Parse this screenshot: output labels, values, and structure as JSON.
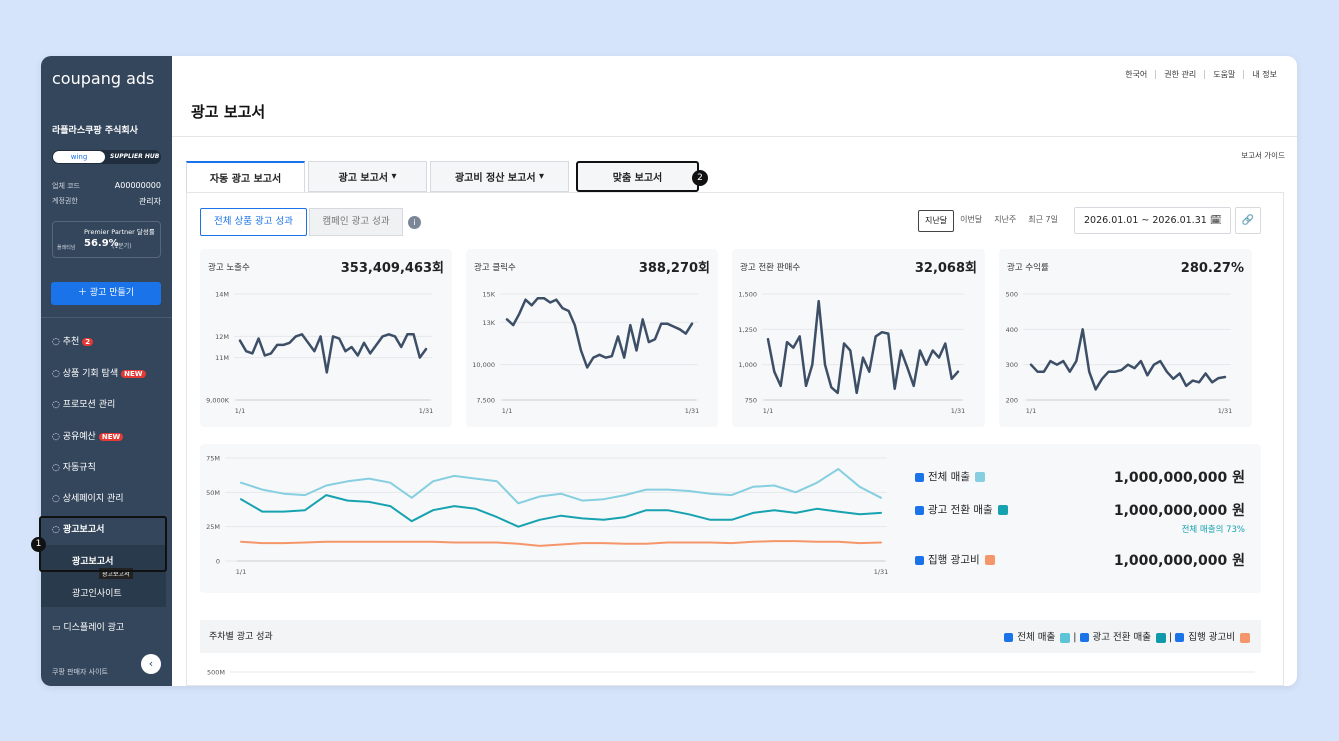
{
  "sidebar": {
    "logo": "coupang ads",
    "company": "라플라스쿠팡 주식회사",
    "switch": [
      "wing",
      "SUPPLIER HUB"
    ],
    "info": [
      [
        "업체 코드",
        "A00000000"
      ],
      [
        "계정권한",
        "관리자"
      ]
    ],
    "partner": {
      "label": "Premier Partner 달성률",
      "grade": "플래티넘",
      "rate": "56.9%",
      "period": "(1분기)"
    },
    "create_button": "광고 만들기",
    "menu": [
      {
        "label": "추천",
        "badge": "2"
      },
      {
        "label": "상품 기회 탐색",
        "badge": "NEW"
      },
      {
        "label": "프로모션 관리"
      },
      {
        "label": "공유예산",
        "badge": "NEW"
      },
      {
        "label": "자동규칙"
      },
      {
        "label": "상세페이지 관리"
      },
      {
        "label": "광고보고서"
      }
    ],
    "submenu": [
      "광고보고서",
      "광고인사이트"
    ],
    "tooltip": "광고보고서",
    "menu_after": "디스플레이 광고",
    "footer": "쿠팡 판매자 사이트",
    "step": "1"
  },
  "header": {
    "links": [
      "한국어",
      "권한 관리",
      "도움말",
      "내 정보"
    ],
    "title": "광고 보고서",
    "guide": "보고서 가이드"
  },
  "tabs": [
    "자동 광고 보고서",
    "광고 보고서",
    "광고비 정산 보고서",
    "맞춤 보고서"
  ],
  "tab_step": "2",
  "subtabs": [
    "전체 상품 광고 성과",
    "캠페인 광고 성과"
  ],
  "periods": [
    "지난달",
    "이번달",
    "지난주",
    "최근 7일"
  ],
  "date_range": "2026.01.01 ~ 2026.01.31",
  "legend_values": [
    "1,000,000,000 원",
    "1,000,000,000 원",
    "1,000,000,000 원"
  ],
  "legend_note": "전체 매출의 73%",
  "chart_data": [
    {
      "type": "line",
      "title": "광고 노출수",
      "total": "353,409,463회",
      "color": "#3d4f66",
      "categories": [
        "1/1",
        null,
        null,
        null,
        null,
        null,
        null,
        null,
        null,
        null,
        null,
        null,
        null,
        null,
        null,
        null,
        null,
        null,
        null,
        null,
        null,
        null,
        null,
        null,
        null,
        null,
        null,
        null,
        null,
        null,
        "1/31"
      ],
      "values": [
        11800000,
        11300000,
        11200000,
        11900000,
        11100000,
        11200000,
        11600000,
        11600000,
        11700000,
        12000000,
        12100000,
        11700000,
        11300000,
        12000000,
        10300000,
        12000000,
        11900000,
        11300000,
        11500000,
        11100000,
        11700000,
        11200000,
        11600000,
        12000000,
        12100000,
        12000000,
        11500000,
        12100000,
        12100000,
        11000000,
        11400000
      ],
      "ylim": [
        9000000,
        14000000
      ],
      "yticks": [
        {
          "value": 9000000,
          "label": "9,000K"
        },
        {
          "value": 11000000,
          "label": "11M"
        },
        {
          "value": 12000000,
          "label": "12M"
        },
        {
          "value": 14000000,
          "label": "14M"
        }
      ]
    },
    {
      "type": "line",
      "title": "광고 클릭수",
      "total": "388,270회",
      "color": "#3d4f66",
      "categories": [
        "1/1",
        null,
        null,
        null,
        null,
        null,
        null,
        null,
        null,
        null,
        null,
        null,
        null,
        null,
        null,
        null,
        null,
        null,
        null,
        null,
        null,
        null,
        null,
        null,
        null,
        null,
        null,
        null,
        null,
        null,
        "1/31"
      ],
      "values": [
        13200,
        12800,
        13600,
        14600,
        14200,
        14700,
        14700,
        14400,
        14600,
        14000,
        13800,
        12800,
        11000,
        9800,
        10500,
        10700,
        10500,
        10600,
        12000,
        10500,
        12800,
        11000,
        13200,
        11600,
        11800,
        12900,
        12900,
        12700,
        12500,
        12200,
        12900
      ],
      "ylim": [
        7500,
        15000
      ],
      "yticks": [
        {
          "value": 7500,
          "label": "7,500"
        },
        {
          "value": 10000,
          "label": "10,000"
        },
        {
          "value": 13000,
          "label": "13K"
        },
        {
          "value": 15000,
          "label": "15K"
        }
      ]
    },
    {
      "type": "line",
      "title": "광고 전환 판매수",
      "total": "32,068회",
      "color": "#3d4f66",
      "categories": [
        "1/1",
        null,
        null,
        null,
        null,
        null,
        null,
        null,
        null,
        null,
        null,
        null,
        null,
        null,
        null,
        null,
        null,
        null,
        null,
        null,
        null,
        null,
        null,
        null,
        null,
        null,
        null,
        null,
        null,
        null,
        "1/31"
      ],
      "values": [
        1180,
        950,
        850,
        1160,
        1120,
        1200,
        850,
        1000,
        1450,
        1000,
        840,
        800,
        1150,
        1100,
        800,
        1050,
        950,
        1200,
        1230,
        1220,
        830,
        1100,
        980,
        850,
        1100,
        1000,
        1100,
        1050,
        1150,
        900,
        950
      ],
      "ylim": [
        750,
        1500
      ],
      "yticks": [
        750,
        {
          "value": 1000,
          "label": "1,000"
        },
        {
          "value": 1250,
          "label": "1,250"
        },
        {
          "value": 1500,
          "label": "1,500"
        }
      ]
    },
    {
      "type": "line",
      "title": "광고 수익률",
      "total": "280.27%",
      "color": "#3d4f66",
      "categories": [
        "1/1",
        null,
        null,
        null,
        null,
        null,
        null,
        null,
        null,
        null,
        null,
        null,
        null,
        null,
        null,
        null,
        null,
        null,
        null,
        null,
        null,
        null,
        null,
        null,
        null,
        null,
        null,
        null,
        null,
        null,
        "1/31"
      ],
      "values": [
        300,
        280,
        280,
        310,
        300,
        310,
        280,
        310,
        400,
        280,
        230,
        260,
        280,
        280,
        285,
        300,
        290,
        310,
        270,
        300,
        310,
        280,
        260,
        275,
        240,
        255,
        250,
        275,
        250,
        262,
        265
      ],
      "ylim": [
        200,
        500
      ],
      "yticks": [
        200,
        300,
        400,
        500
      ]
    },
    {
      "type": "line",
      "categories": [
        "1/1",
        null,
        null,
        null,
        null,
        null,
        null,
        null,
        null,
        null,
        null,
        null,
        null,
        null,
        null,
        null,
        null,
        null,
        null,
        null,
        null,
        null,
        null,
        null,
        null,
        null,
        null,
        null,
        null,
        null,
        "1/31"
      ],
      "series": [
        {
          "name": "전체 매출",
          "color": "#86cfe0",
          "values": [
            57000000,
            52000000,
            49000000,
            48000000,
            55000000,
            58000000,
            60000000,
            57000000,
            46000000,
            58000000,
            62000000,
            60000000,
            58000000,
            42000000,
            47000000,
            49000000,
            44000000,
            45000000,
            48000000,
            52000000,
            52000000,
            51000000,
            49000000,
            48000000,
            54000000,
            55000000,
            50000000,
            57000000,
            67000000,
            54000000,
            46000000
          ]
        },
        {
          "name": "광고 전환 매출",
          "color": "#17a2b0",
          "values": [
            45000000,
            36000000,
            36000000,
            37000000,
            48000000,
            44000000,
            43000000,
            40000000,
            29000000,
            37000000,
            40000000,
            38000000,
            32000000,
            25000000,
            30000000,
            33000000,
            31000000,
            30000000,
            32000000,
            37000000,
            37000000,
            34000000,
            30000000,
            30000000,
            35000000,
            37000000,
            35000000,
            38000000,
            36000000,
            34000000,
            35000000
          ]
        },
        {
          "name": "집행 광고비",
          "color": "#f5966a",
          "values": [
            14000000,
            13000000,
            13000000,
            13500000,
            14000000,
            14000000,
            14000000,
            14000000,
            14000000,
            14000000,
            13500000,
            13500000,
            13500000,
            12500000,
            11000000,
            12000000,
            13000000,
            13000000,
            12500000,
            12500000,
            13500000,
            13500000,
            13500000,
            13000000,
            14000000,
            14500000,
            14500000,
            14000000,
            14000000,
            13000000,
            13500000
          ]
        }
      ],
      "ylim": [
        0,
        75000000
      ],
      "yticks": [
        0,
        {
          "value": 25000000,
          "label": "25M"
        },
        {
          "value": 50000000,
          "label": "50M"
        },
        {
          "value": 75000000,
          "label": "75M"
        }
      ]
    },
    {
      "type": "bar",
      "title": "주차별 광고 성과",
      "series": [
        {
          "name": "전체 매출",
          "color": "#5bc4d6"
        },
        {
          "name": "광고 전환 매출",
          "color": "#0e9aaa"
        },
        {
          "name": "집행 광고비",
          "color": "#f5966a"
        }
      ],
      "ylim": [
        0,
        500000000
      ],
      "yticks": [
        {
          "value": 500000000,
          "label": "500M"
        }
      ]
    }
  ]
}
